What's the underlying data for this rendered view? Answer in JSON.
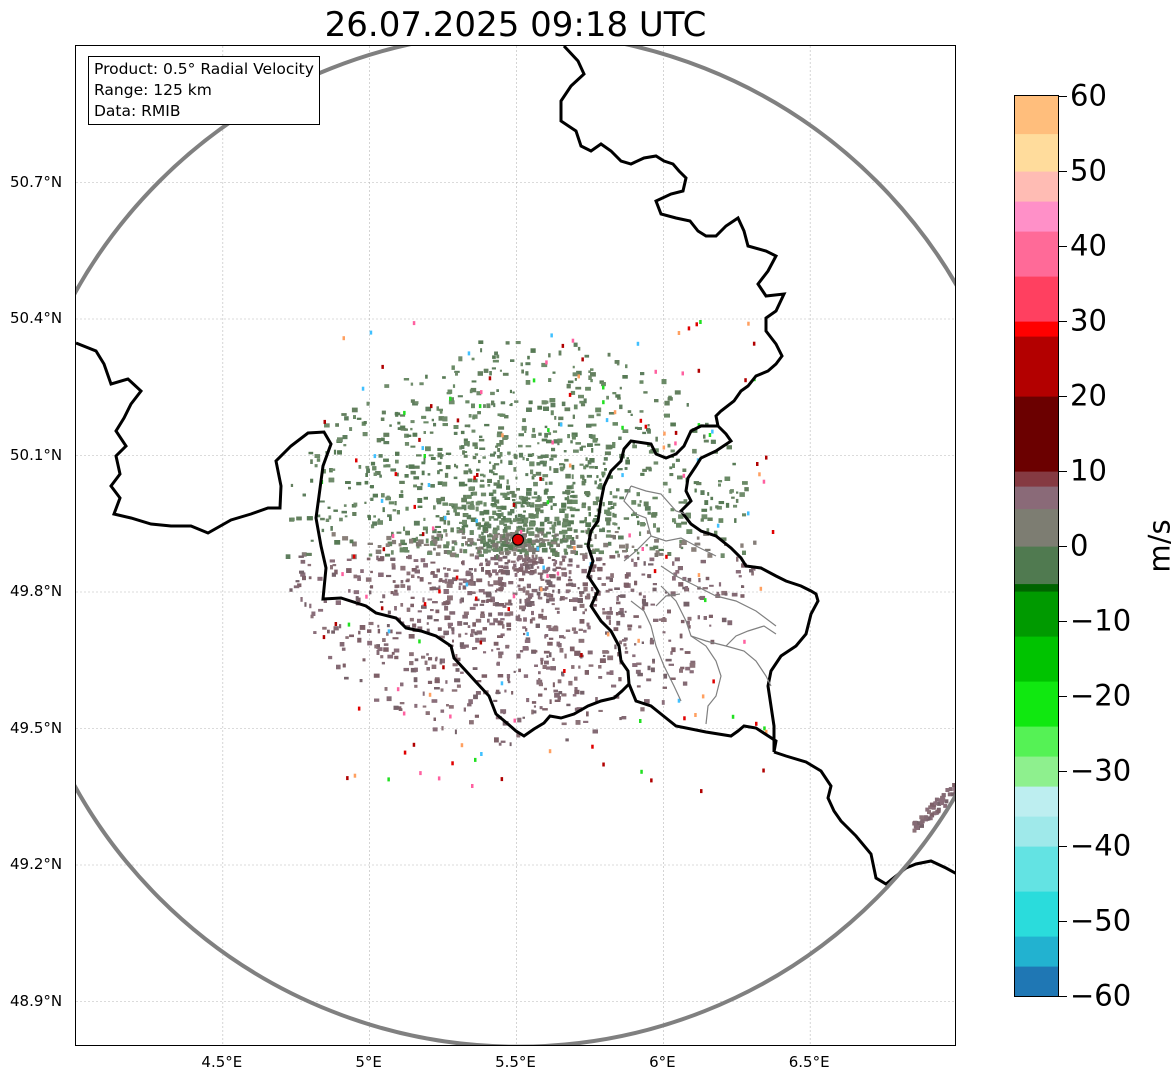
{
  "title": "26.07.2025 09:18 UTC",
  "info_box": {
    "product": "Product: 0.5° Radial Velocity",
    "range": "Range: 125 km",
    "data": "Data: RMIB"
  },
  "lat_ticks": [
    {
      "label": "50.7°N",
      "value": 50.7
    },
    {
      "label": "50.4°N",
      "value": 50.4
    },
    {
      "label": "50.1°N",
      "value": 50.1
    },
    {
      "label": "49.8°N",
      "value": 49.8
    },
    {
      "label": "49.5°N",
      "value": 49.5
    },
    {
      "label": "49.2°N",
      "value": 49.2
    },
    {
      "label": "48.9°N",
      "value": 48.9
    }
  ],
  "lon_ticks": [
    {
      "label": "4.5°E",
      "value": 4.5
    },
    {
      "label": "5°E",
      "value": 5.0
    },
    {
      "label": "5.5°E",
      "value": 5.5
    },
    {
      "label": "6°E",
      "value": 6.0
    },
    {
      "label": "6.5°E",
      "value": 6.5
    }
  ],
  "extent": {
    "lon_min": 4.0,
    "lon_max": 7.0,
    "lat_min": 48.8,
    "lat_max": 51.0
  },
  "radar_site": {
    "lon": 5.505,
    "lat": 49.915
  },
  "range_ring_km": 125,
  "colorbar": {
    "unit": "m/s",
    "min": -60,
    "max": 60,
    "ticks": [
      {
        "label": "60",
        "value": 60
      },
      {
        "label": "50",
        "value": 50
      },
      {
        "label": "40",
        "value": 40
      },
      {
        "label": "30",
        "value": 30
      },
      {
        "label": "20",
        "value": 20
      },
      {
        "label": "10",
        "value": 10
      },
      {
        "label": "0",
        "value": 0
      },
      {
        "label": "−10",
        "value": -10
      },
      {
        "label": "−20",
        "value": -20
      },
      {
        "label": "−30",
        "value": -30
      },
      {
        "label": "−40",
        "value": -40
      },
      {
        "label": "−50",
        "value": -50
      },
      {
        "label": "−60",
        "value": -60
      }
    ],
    "stops": [
      {
        "v": -60,
        "c": "#1f77b4"
      },
      {
        "v": -56,
        "c": "#22b2d0"
      },
      {
        "v": -52,
        "c": "#2adcdc"
      },
      {
        "v": -46,
        "c": "#63e3e3"
      },
      {
        "v": -40,
        "c": "#9fe9ea"
      },
      {
        "v": -36,
        "c": "#bdeef0"
      },
      {
        "v": -32,
        "c": "#8ef08e"
      },
      {
        "v": -28,
        "c": "#55f255"
      },
      {
        "v": -24,
        "c": "#10e810"
      },
      {
        "v": -18,
        "c": "#00c300"
      },
      {
        "v": -12,
        "c": "#009a00"
      },
      {
        "v": -6,
        "c": "#006400"
      },
      {
        "v": -5,
        "c": "#507a50"
      },
      {
        "v": 0,
        "c": "#7d7d72"
      },
      {
        "v": 5,
        "c": "#8a6a78"
      },
      {
        "v": 8,
        "c": "#853a42"
      },
      {
        "v": 10,
        "c": "#6b0000"
      },
      {
        "v": 20,
        "c": "#b30000"
      },
      {
        "v": 28,
        "c": "#ff0000"
      },
      {
        "v": 30,
        "c": "#ff4060"
      },
      {
        "v": 36,
        "c": "#ff6a98"
      },
      {
        "v": 42,
        "c": "#ff90c8"
      },
      {
        "v": 46,
        "c": "#ffbcb4"
      },
      {
        "v": 50,
        "c": "#ffdc9c"
      },
      {
        "v": 55,
        "c": "#ffbe7c"
      },
      {
        "v": 60,
        "c": "#ff9850"
      }
    ]
  }
}
